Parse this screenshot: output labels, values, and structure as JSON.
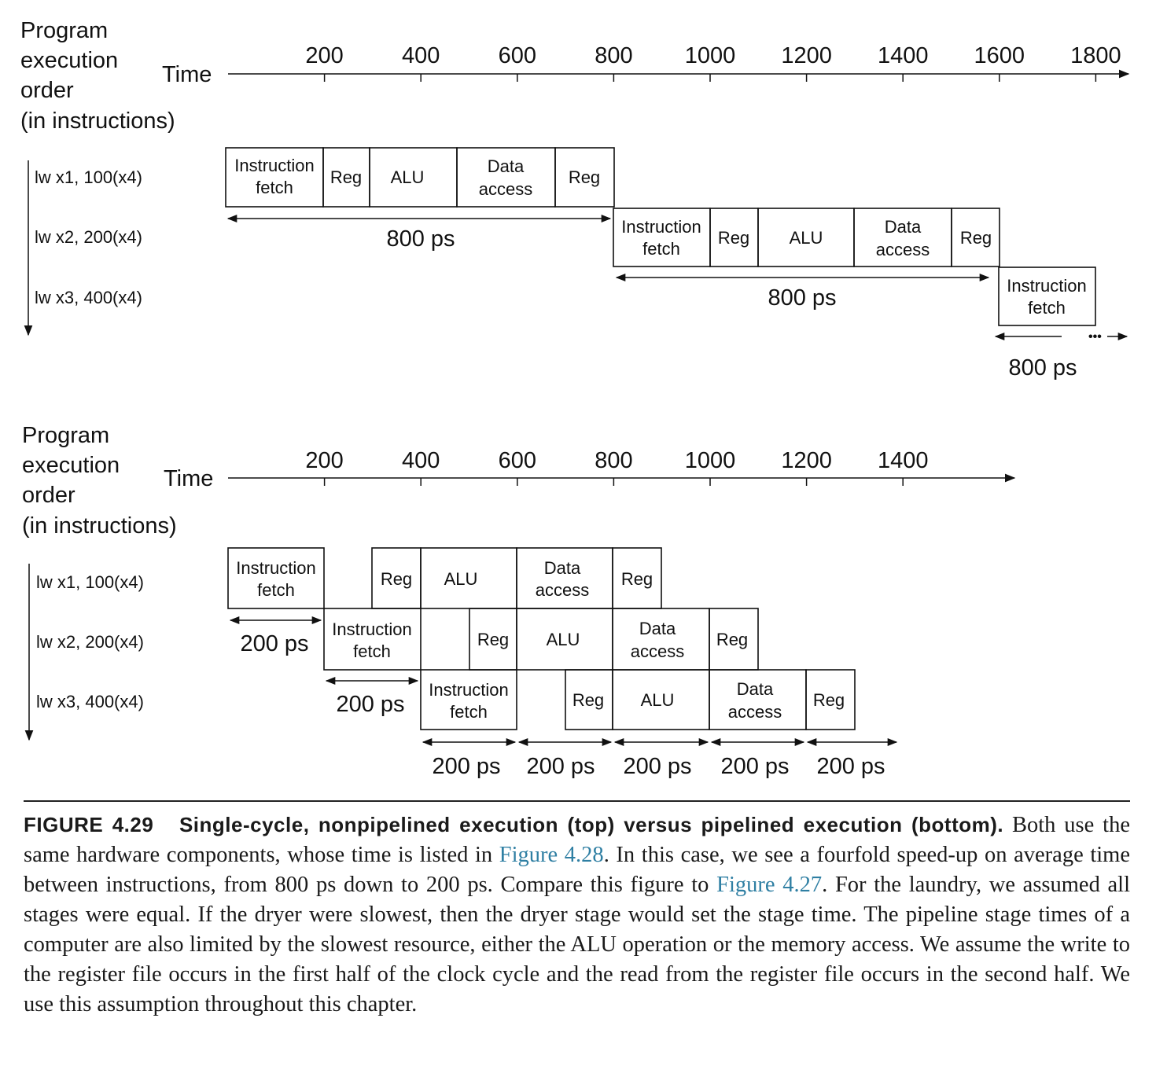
{
  "top_panel": {
    "axis_heading": [
      "Program",
      "execution",
      "order",
      "(in instructions)"
    ],
    "time_label": "Time",
    "ticks": [
      "200",
      "400",
      "600",
      "800",
      "1000",
      "1200",
      "1400",
      "1600",
      "1800"
    ],
    "instructions": [
      "lw x1, 100(x4)",
      "lw x2, 200(x4)",
      "lw x3, 400(x4)"
    ],
    "stages": {
      "if": [
        "Instruction",
        "fetch"
      ],
      "reg": "Reg",
      "alu": "ALU",
      "mem": [
        "Data",
        "access"
      ]
    },
    "spans": [
      "800 ps",
      "800 ps",
      "800 ps"
    ],
    "ellipsis": "•••"
  },
  "bottom_panel": {
    "axis_heading": [
      "Program",
      "execution",
      "order",
      "(in instructions)"
    ],
    "time_label": "Time",
    "ticks": [
      "200",
      "400",
      "600",
      "800",
      "1000",
      "1200",
      "1400"
    ],
    "instructions": [
      "lw x1, 100(x4)",
      "lw x2, 200(x4)",
      "lw x3, 400(x4)"
    ],
    "stages": {
      "if": [
        "Instruction",
        "fetch"
      ],
      "reg": "Reg",
      "alu": "ALU",
      "mem": [
        "Data",
        "access"
      ]
    },
    "spans": [
      "200 ps",
      "200 ps",
      "200 ps",
      "200 ps",
      "200 ps",
      "200 ps",
      "200 ps"
    ]
  },
  "caption": {
    "figure_label": "FIGURE 4.29",
    "title": "Single-cycle, nonpipelined execution (top) versus pipelined execution (bottom).",
    "text_1": "Both use the same hardware components, whose time is listed in",
    "link_1": "Figure 4.28",
    "text_2": ". In this case, we see a fourfold speed-up on average time between instructions, from 800 ps down to 200 ps. Compare this figure to",
    "link_2": "Figure 4.27",
    "text_3": ". For the laundry, we assumed all stages were equal. If the dryer were slowest, then the dryer stage would set the stage time. The pipeline stage times of a computer are also limited by the slowest resource, either the ALU operation or the memory access. We assume the write to the register file occurs in the first half of the clock cycle and the read from the register file occurs in the second half. We use this assumption throughout this chapter."
  }
}
